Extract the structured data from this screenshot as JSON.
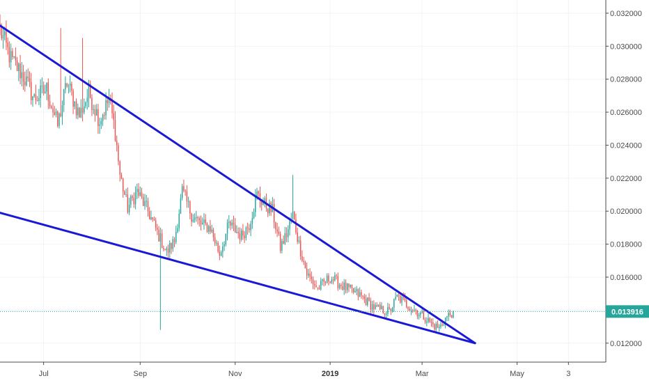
{
  "chart_data": {
    "type": "candlestick",
    "title": "",
    "xlabel": "",
    "ylabel": "",
    "ylim": [
      0.01085,
      0.0328
    ],
    "y_ticks": [
      "0.032000",
      "0.030000",
      "0.028000",
      "0.026000",
      "0.024000",
      "0.022000",
      "0.020000",
      "0.018000",
      "0.016000",
      "0.014000",
      "0.012000"
    ],
    "x_ticks": [
      {
        "label": "Jul",
        "date": "2018-07-01",
        "bold": false
      },
      {
        "label": "Sep",
        "date": "2018-09-01",
        "bold": false
      },
      {
        "label": "Nov",
        "date": "2018-11-01",
        "bold": false
      },
      {
        "label": "2019",
        "date": "2019-01-01",
        "bold": true
      },
      {
        "label": "Mar",
        "date": "2019-03-01",
        "bold": false
      },
      {
        "label": "May",
        "date": "2019-05-01",
        "bold": false
      },
      {
        "label": "3",
        "date": "2019-06-03",
        "bold": false
      }
    ],
    "x_range": [
      "2018-06-03",
      "2019-06-27"
    ],
    "last_price": {
      "label": "0.013916",
      "value": 0.013916
    },
    "colors": {
      "up": "#26a69a",
      "down": "#ef5350",
      "trendline": "#1a1ad6",
      "price_tag": "#26a69a",
      "grid": "#f0f3f7"
    },
    "grid": true,
    "trendlines": [
      {
        "name": "upper",
        "start": {
          "date": "2018-06-03",
          "value": 0.03125
        },
        "end": {
          "date": "2019-04-04",
          "value": 0.012
        }
      },
      {
        "name": "lower",
        "start": {
          "date": "2018-06-03",
          "value": 0.0199
        },
        "end": {
          "date": "2019-04-04",
          "value": 0.012
        }
      }
    ],
    "price_path": [
      [
        "2018-06-03",
        0.031
      ],
      [
        "2018-06-10",
        0.0292
      ],
      [
        "2018-06-18",
        0.0282
      ],
      [
        "2018-06-25",
        0.0268
      ],
      [
        "2018-07-03",
        0.0274
      ],
      [
        "2018-07-10",
        0.0252
      ],
      [
        "2018-07-16",
        0.0278
      ],
      [
        "2018-07-24",
        0.0258
      ],
      [
        "2018-07-30",
        0.0272
      ],
      [
        "2018-08-06",
        0.0255
      ],
      [
        "2018-08-12",
        0.0268
      ],
      [
        "2018-08-16",
        0.0248
      ],
      [
        "2018-08-19",
        0.0222
      ],
      [
        "2018-08-24",
        0.0202
      ],
      [
        "2018-08-30",
        0.0212
      ],
      [
        "2018-09-06",
        0.02
      ],
      [
        "2018-09-13",
        0.0185
      ],
      [
        "2018-09-18",
        0.0175
      ],
      [
        "2018-09-23",
        0.0182
      ],
      [
        "2018-09-28",
        0.0212
      ],
      [
        "2018-10-04",
        0.0198
      ],
      [
        "2018-10-10",
        0.0192
      ],
      [
        "2018-10-16",
        0.019
      ],
      [
        "2018-10-22",
        0.0174
      ],
      [
        "2018-10-28",
        0.0192
      ],
      [
        "2018-11-05",
        0.0185
      ],
      [
        "2018-11-10",
        0.0192
      ],
      [
        "2018-11-15",
        0.021
      ],
      [
        "2018-11-20",
        0.0204
      ],
      [
        "2018-11-25",
        0.02
      ],
      [
        "2018-11-30",
        0.0178
      ],
      [
        "2018-12-04",
        0.0186
      ],
      [
        "2018-12-08",
        0.0198
      ],
      [
        "2018-12-12",
        0.018
      ],
      [
        "2018-12-17",
        0.0162
      ],
      [
        "2018-12-24",
        0.0153
      ],
      [
        "2019-01-01",
        0.016
      ],
      [
        "2019-01-10",
        0.0154
      ],
      [
        "2019-01-20",
        0.0149
      ],
      [
        "2019-01-30",
        0.0141
      ],
      [
        "2019-02-08",
        0.0139
      ],
      [
        "2019-02-13",
        0.0148
      ],
      [
        "2019-02-20",
        0.0143
      ],
      [
        "2019-03-01",
        0.0137
      ],
      [
        "2019-03-08",
        0.0131
      ],
      [
        "2019-03-12",
        0.0129
      ],
      [
        "2019-03-16",
        0.0135
      ],
      [
        "2019-03-21",
        0.01392
      ]
    ],
    "wick_spikes": [
      {
        "date": "2018-07-12",
        "high": 0.0311
      },
      {
        "date": "2018-07-26",
        "high": 0.0305
      },
      {
        "date": "2018-09-14",
        "low": 0.0128
      },
      {
        "date": "2018-12-08",
        "high": 0.0222
      }
    ]
  }
}
